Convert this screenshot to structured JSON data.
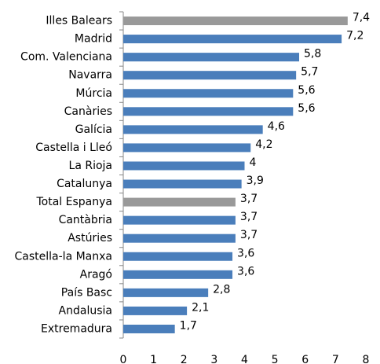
{
  "chart_data": {
    "type": "bar",
    "orientation": "horizontal",
    "categories": [
      "Illes Balears",
      "Madrid",
      "Com. Valenciana",
      "Navarra",
      "Múrcia",
      "Canàries",
      "Galícia",
      "Castella i Lleó",
      "La Rioja",
      "Catalunya",
      "Total Espanya",
      "Cantàbria",
      "Astúries",
      "Castella-la Manxa",
      "Aragó",
      "País Basc",
      "Andalusia",
      "Extremadura"
    ],
    "values": [
      7.4,
      7.2,
      5.8,
      5.7,
      5.6,
      5.6,
      4.6,
      4.2,
      4,
      3.9,
      3.7,
      3.7,
      3.7,
      3.6,
      3.6,
      2.8,
      2.1,
      1.7
    ],
    "value_labels": [
      "7,4",
      "7,2",
      "5,8",
      "5,7",
      "5,6",
      "5,6",
      "4,6",
      "4,2",
      "4",
      "3,9",
      "3,7",
      "3,7",
      "3,7",
      "3,6",
      "3,6",
      "2,8",
      "2,1",
      "1,7"
    ],
    "colors": [
      "#999999",
      "#4a7ebb",
      "#4a7ebb",
      "#4a7ebb",
      "#4a7ebb",
      "#4a7ebb",
      "#4a7ebb",
      "#4a7ebb",
      "#4a7ebb",
      "#4a7ebb",
      "#999999",
      "#4a7ebb",
      "#4a7ebb",
      "#4a7ebb",
      "#4a7ebb",
      "#4a7ebb",
      "#4a7ebb",
      "#4a7ebb"
    ],
    "xlim": [
      0,
      8
    ],
    "xticks": [
      0,
      1,
      2,
      3,
      4,
      5,
      6,
      7,
      8
    ]
  }
}
